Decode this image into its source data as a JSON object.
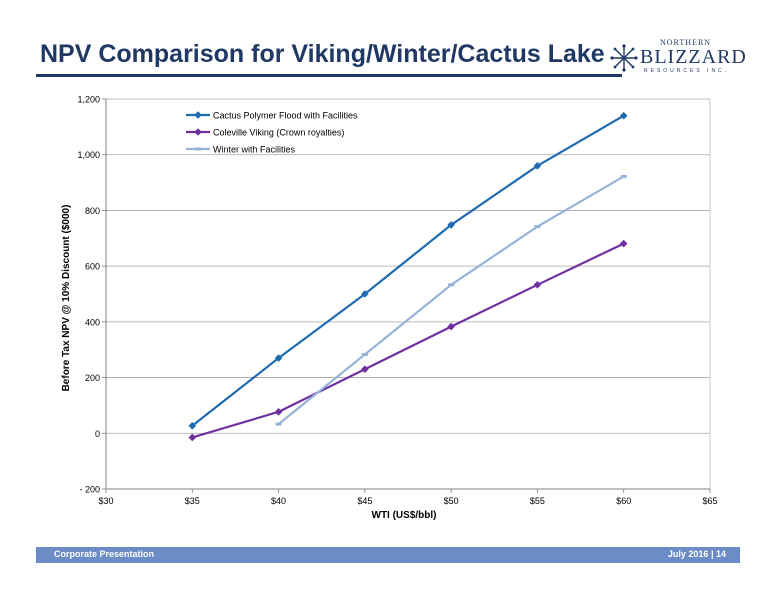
{
  "header": {
    "title": "NPV Comparison for Viking/Winter/Cactus Lake",
    "logo": {
      "top": "NORTHERN",
      "main": "BLIZZARD",
      "sub": "RESOURCES INC."
    }
  },
  "footer": {
    "left": "Corporate Presentation",
    "date": "July 2016",
    "separator": "|",
    "page": "14"
  },
  "colors": {
    "title": "#1f3864",
    "footer": "#6b8cc7"
  },
  "chart_data": {
    "type": "line",
    "xlabel": "WTI (US$/bbl)",
    "ylabel": "Before Tax NPV @ 10% Discount ($000)",
    "xlim": [
      30,
      65
    ],
    "ylim": [
      -200,
      1200
    ],
    "x_ticks": [
      30,
      35,
      40,
      45,
      50,
      55,
      60,
      65
    ],
    "x_tick_labels": [
      "$30",
      "$35",
      "$40",
      "$45",
      "$50",
      "$55",
      "$60",
      "$65"
    ],
    "y_ticks": [
      -200,
      0,
      200,
      400,
      600,
      800,
      1000,
      1200
    ],
    "y_tick_labels": [
      "- 200",
      "0",
      "200",
      "400",
      "600",
      "800",
      "1,000",
      "1,200"
    ],
    "grid": "horizontal",
    "legend_position": "top-left",
    "series": [
      {
        "name": "Cactus Polymer Flood with Facilities",
        "color": "#1f6bb0",
        "marker": "diamond",
        "x": [
          35,
          40,
          45,
          50,
          55,
          60
        ],
        "y": [
          27,
          270,
          500,
          748,
          960,
          1140
        ]
      },
      {
        "name": "Coleville Viking (Crown royalties)",
        "color": "#7030a0",
        "marker": "diamond",
        "x": [
          35,
          40,
          45,
          50,
          55,
          60
        ],
        "y": [
          -15,
          77,
          230,
          383,
          533,
          681
        ]
      },
      {
        "name": "Winter with Facilities",
        "color": "#95b3d7",
        "marker": "dash",
        "x": [
          40,
          45,
          50,
          55,
          60
        ],
        "y": [
          33,
          283,
          533,
          742,
          922
        ]
      }
    ]
  }
}
